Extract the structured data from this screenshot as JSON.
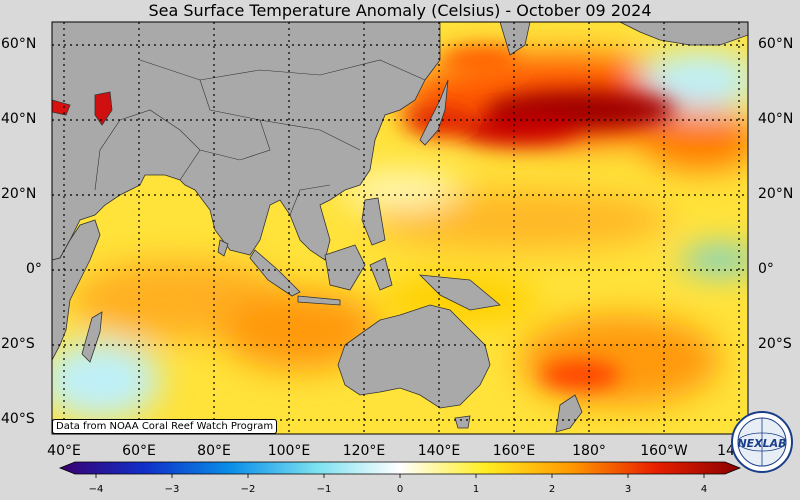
{
  "title": "Sea Surface Temperature Anomaly (Celsius) - October 09 2024",
  "credit": "Data from NOAA Coral Reef Watch Program",
  "lat_labels": [
    "60°N",
    "40°N",
    "20°N",
    "0°",
    "20°S",
    "40°S"
  ],
  "lon_labels": [
    "40°E",
    "60°E",
    "80°E",
    "100°E",
    "120°E",
    "140°E",
    "160°E",
    "180°",
    "160°W",
    "14"
  ],
  "colorbar": {
    "ticks": [
      "−4",
      "−3",
      "−2",
      "−1",
      "0",
      "1",
      "2",
      "3",
      "4"
    ],
    "min": -4,
    "max": 4,
    "colors": [
      "#3a0070",
      "#1030c8",
      "#0a8ee8",
      "#7ae0f0",
      "#ffffff",
      "#ffee22",
      "#ff9a00",
      "#e82000",
      "#8a0000"
    ]
  },
  "logo_text": "NEXLAB",
  "colors": {
    "land": "#a9a9a9",
    "background": "#d9d9d9",
    "warm_dark": "#8a0000",
    "warm": "#ff9a00",
    "neutral_warm": "#ffee22",
    "cool": "#7ae0f0"
  }
}
